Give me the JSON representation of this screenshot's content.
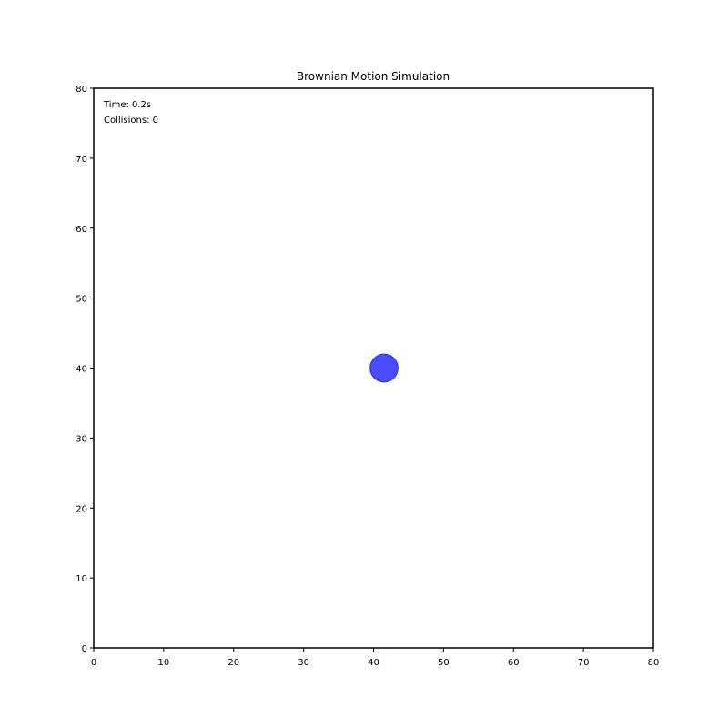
{
  "chart_data": {
    "type": "scatter",
    "title": "Brownian Motion Simulation",
    "xlabel": "",
    "ylabel": "",
    "xlim": [
      0,
      80
    ],
    "ylim": [
      0,
      80
    ],
    "x_ticks": [
      "0",
      "10",
      "20",
      "30",
      "40",
      "50",
      "60",
      "70",
      "80"
    ],
    "y_ticks": [
      "0",
      "10",
      "20",
      "30",
      "40",
      "50",
      "60",
      "70",
      "80"
    ],
    "grid": false,
    "annotations": {
      "time": "Time: 0.2s",
      "collisions": "Collisions: 0"
    },
    "series": [
      {
        "points": [
          {
            "x": 41.5,
            "y": 40.0,
            "radius": 2.0
          }
        ],
        "color": "#0000ff",
        "alpha": 0.7
      }
    ]
  }
}
